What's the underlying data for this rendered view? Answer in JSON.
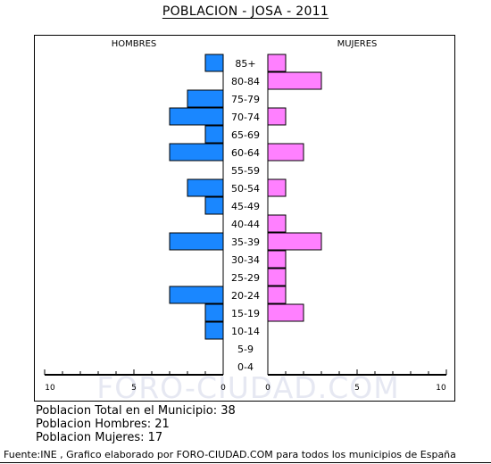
{
  "title": "POBLACION - JOSA - 2011",
  "labels": {
    "left": "HOMBRES",
    "right": "MUJERES"
  },
  "watermark": "FORO-CIUDAD.COM",
  "stats": [
    "Poblacion Total en el Municipio: 38",
    "Poblacion Hombres: 21",
    "Poblacion Mujeres: 17"
  ],
  "footer": "Fuente:INE , Grafico elaborado por FORO-CIUDAD.COM para todos los municipios de España",
  "colors": {
    "men": "#1a87ff",
    "women": "#ff80ff"
  },
  "chart_data": {
    "type": "bar",
    "orientation": "horizontal",
    "subtype": "population-pyramid",
    "categories": [
      "85+",
      "80-84",
      "75-79",
      "70-74",
      "65-69",
      "60-64",
      "55-59",
      "50-54",
      "45-49",
      "40-44",
      "35-39",
      "30-34",
      "25-29",
      "20-24",
      "15-19",
      "10-14",
      "5-9",
      "0-4"
    ],
    "series": [
      {
        "name": "HOMBRES",
        "values": [
          1,
          0,
          2,
          3,
          1,
          3,
          0,
          2,
          1,
          0,
          3,
          0,
          0,
          3,
          1,
          1,
          0,
          0
        ]
      },
      {
        "name": "MUJERES",
        "values": [
          1,
          3,
          0,
          1,
          0,
          2,
          0,
          1,
          0,
          1,
          3,
          1,
          1,
          1,
          2,
          0,
          0,
          0
        ]
      }
    ],
    "xlim": [
      0,
      10
    ],
    "left_ticks": [
      "10",
      "5",
      "0"
    ],
    "right_ticks": [
      "0",
      "5",
      "10"
    ],
    "grid": false
  }
}
